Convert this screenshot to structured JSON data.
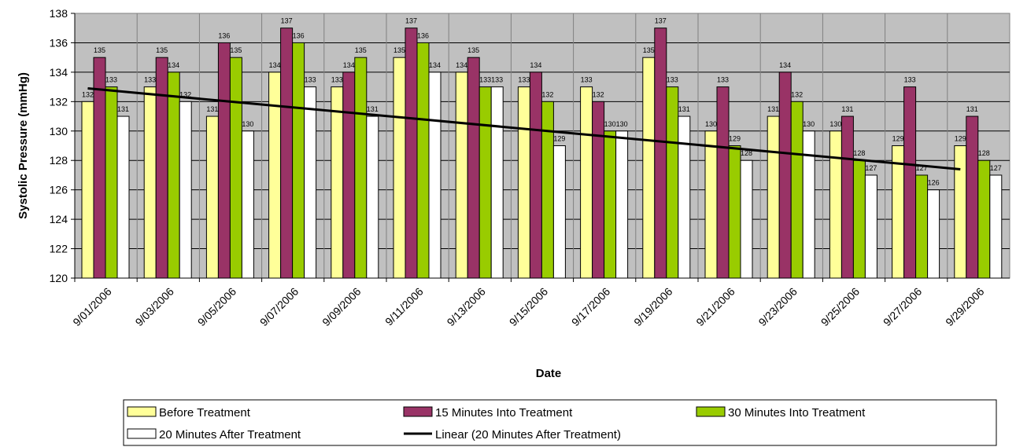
{
  "chart_data": {
    "type": "bar",
    "title": "",
    "xlabel": "Date",
    "ylabel": "Systolic Pressure (mmHg)",
    "ylim": [
      120,
      138
    ],
    "ytick_step": 2,
    "grid": true,
    "legend_position": "bottom",
    "categories": [
      "9/01/2006",
      "9/03/2006",
      "9/05/2006",
      "9/07/2006",
      "9/09/2006",
      "9/11/2006",
      "9/13/2006",
      "9/15/2006",
      "9/17/2006",
      "9/19/2006",
      "9/21/2006",
      "9/23/2006",
      "9/25/2006",
      "9/27/2006",
      "9/29/2006"
    ],
    "series": [
      {
        "name": "Before Treatment",
        "color": "#FFFF99",
        "values": [
          132,
          133,
          131,
          134,
          133,
          135,
          134,
          133,
          133,
          135,
          130,
          131,
          130,
          129,
          129
        ]
      },
      {
        "name": "15 Minutes Into Treatment",
        "color": "#993366",
        "values": [
          135,
          135,
          136,
          137,
          134,
          137,
          135,
          134,
          132,
          137,
          133,
          134,
          131,
          133,
          131
        ]
      },
      {
        "name": "30 Minutes Into Treatment",
        "color": "#99CC00",
        "values": [
          133,
          134,
          135,
          136,
          135,
          136,
          133,
          132,
          130,
          133,
          129,
          132,
          128,
          127,
          128
        ]
      },
      {
        "name": "20 Minutes After Treatment",
        "color": "#FFFFFF",
        "values": [
          131,
          132,
          130,
          133,
          131,
          134,
          133,
          129,
          130,
          131,
          128,
          130,
          127,
          126,
          127
        ]
      }
    ],
    "trendline": {
      "name": "Linear (20 Minutes After Treatment)",
      "color": "#000000",
      "start": 132.9,
      "end": 127.4
    },
    "plot_background": "#C0C0C0"
  }
}
